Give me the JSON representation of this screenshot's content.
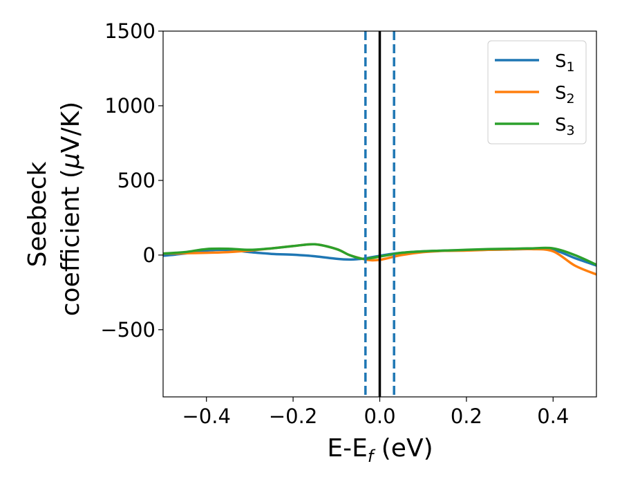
{
  "chart_data": {
    "type": "line",
    "xlabel": "E-E",
    "xlabel_sub": "f",
    "xlabel_unit": " (eV)",
    "ylabel_line1": "Seebeck",
    "ylabel_line2": "coefficient  (",
    "ylabel_mu": "μ",
    "ylabel_unit": "V/K)",
    "xlim": [
      -0.5,
      0.5
    ],
    "ylim": [
      -950,
      1500
    ],
    "x_ticks": [
      -0.4,
      -0.2,
      0.0,
      0.2,
      0.4
    ],
    "x_tick_labels": [
      "−0.4",
      "−0.2",
      "0.0",
      "0.2",
      "0.4"
    ],
    "y_ticks": [
      -500,
      0,
      500,
      1000,
      1500
    ],
    "y_tick_labels": [
      "−500",
      "0",
      "500",
      "1000",
      "1500"
    ],
    "legend_position": "top-right",
    "vlines": [
      {
        "x": -0.033,
        "color": "#1f77b4",
        "style": "dashed"
      },
      {
        "x": 0.0,
        "color": "#000000",
        "style": "solid"
      },
      {
        "x": 0.033,
        "color": "#1f77b4",
        "style": "dashed"
      }
    ],
    "series": [
      {
        "name": "S",
        "sub": "1",
        "color": "#1f77b4",
        "x": [
          -0.5,
          -0.45,
          -0.4,
          -0.35,
          -0.3,
          -0.25,
          -0.2,
          -0.15,
          -0.1,
          -0.07,
          -0.04,
          -0.02,
          0.0,
          0.02,
          0.05,
          0.1,
          0.15,
          0.2,
          0.25,
          0.3,
          0.35,
          0.4,
          0.45,
          0.5
        ],
        "y": [
          -5,
          10,
          30,
          35,
          20,
          8,
          2,
          -8,
          -25,
          -30,
          -25,
          -15,
          -5,
          5,
          15,
          25,
          30,
          32,
          35,
          38,
          40,
          35,
          -20,
          -70
        ]
      },
      {
        "name": "S",
        "sub": "2",
        "color": "#ff7f0e",
        "x": [
          -0.5,
          -0.45,
          -0.4,
          -0.35,
          -0.3,
          -0.25,
          -0.2,
          -0.15,
          -0.1,
          -0.07,
          -0.04,
          -0.02,
          0.0,
          0.02,
          0.05,
          0.1,
          0.15,
          0.2,
          0.25,
          0.3,
          0.35,
          0.4,
          0.45,
          0.5
        ],
        "y": [
          10,
          12,
          15,
          20,
          30,
          45,
          60,
          72,
          40,
          0,
          -25,
          -35,
          -32,
          -20,
          0,
          20,
          28,
          30,
          35,
          38,
          40,
          25,
          -70,
          -130
        ]
      },
      {
        "name": "S",
        "sub": "3",
        "color": "#2ca02c",
        "x": [
          -0.5,
          -0.45,
          -0.4,
          -0.35,
          -0.3,
          -0.25,
          -0.2,
          -0.15,
          -0.1,
          -0.07,
          -0.04,
          -0.02,
          0.0,
          0.02,
          0.05,
          0.1,
          0.15,
          0.2,
          0.25,
          0.3,
          0.35,
          0.4,
          0.45,
          0.5
        ],
        "y": [
          10,
          20,
          40,
          42,
          35,
          45,
          60,
          72,
          40,
          0,
          -25,
          -20,
          -10,
          0,
          15,
          25,
          30,
          35,
          40,
          42,
          45,
          45,
          0,
          -65
        ]
      }
    ]
  }
}
